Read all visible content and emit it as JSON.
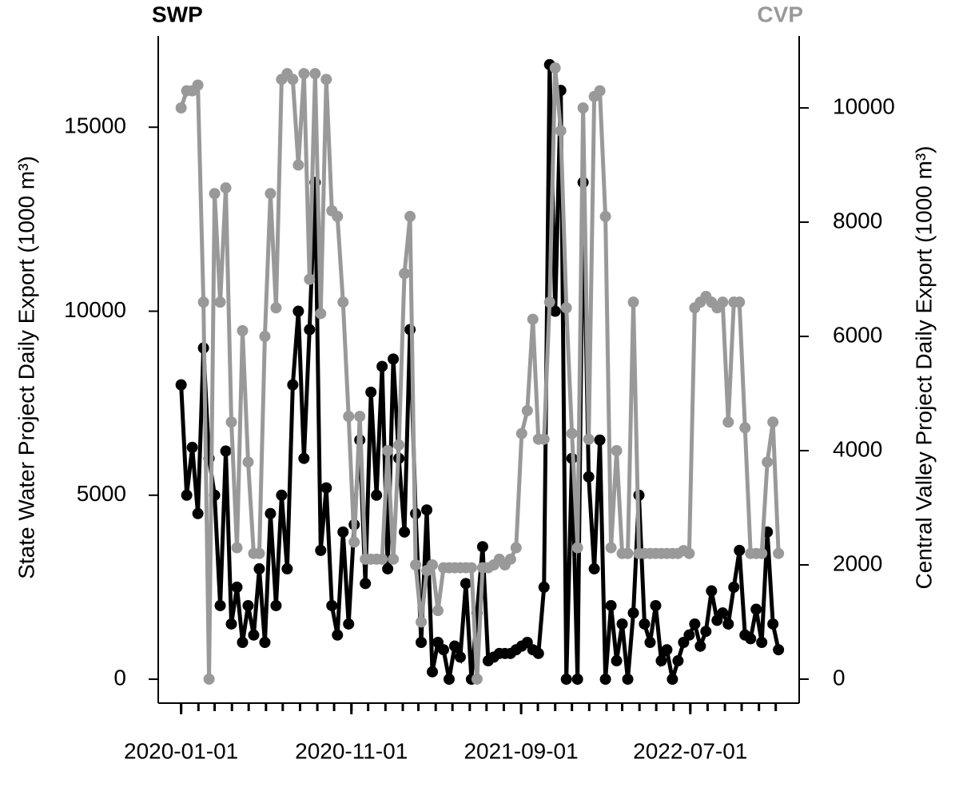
{
  "chart_data": {
    "type": "line",
    "left_label": "SWP",
    "right_label": "CVP",
    "ylabel": "State Water Project Daily Export (1000 m³)",
    "y2label": "Central Valley Project Daily Export (1000 m³)",
    "x": [
      "2020-01-01",
      "2020-01-11",
      "2020-01-21",
      "2020-01-31",
      "2020-02-10",
      "2020-02-20",
      "2020-03-01",
      "2020-03-11",
      "2020-03-21",
      "2020-03-31",
      "2020-04-10",
      "2020-04-20",
      "2020-04-30",
      "2020-05-10",
      "2020-05-20",
      "2020-05-30",
      "2020-06-09",
      "2020-06-19",
      "2020-06-29",
      "2020-07-09",
      "2020-07-19",
      "2020-07-29",
      "2020-08-08",
      "2020-08-18",
      "2020-08-28",
      "2020-09-07",
      "2020-09-17",
      "2020-09-27",
      "2020-10-07",
      "2020-10-17",
      "2020-10-27",
      "2020-11-06",
      "2020-11-16",
      "2020-11-26",
      "2020-12-06",
      "2020-12-16",
      "2020-12-26",
      "2021-01-05",
      "2021-01-15",
      "2021-01-25",
      "2021-02-04",
      "2021-02-14",
      "2021-02-24",
      "2021-03-06",
      "2021-03-16",
      "2021-03-26",
      "2021-04-05",
      "2021-04-15",
      "2021-04-25",
      "2021-05-05",
      "2021-05-15",
      "2021-05-25",
      "2021-06-04",
      "2021-06-14",
      "2021-06-24",
      "2021-07-04",
      "2021-07-14",
      "2021-07-24",
      "2021-08-03",
      "2021-08-13",
      "2021-08-23",
      "2021-09-02",
      "2021-09-12",
      "2021-09-22",
      "2021-10-02",
      "2021-10-12",
      "2021-10-22",
      "2021-11-01",
      "2021-11-11",
      "2021-11-21",
      "2021-12-01",
      "2021-12-11",
      "2021-12-21",
      "2021-12-31",
      "2022-01-10",
      "2022-01-20",
      "2022-01-30",
      "2022-02-09",
      "2022-02-19",
      "2022-03-01",
      "2022-03-11",
      "2022-03-21",
      "2022-03-31",
      "2022-04-10",
      "2022-04-20",
      "2022-04-30",
      "2022-05-10",
      "2022-05-20",
      "2022-05-30",
      "2022-06-09",
      "2022-06-19",
      "2022-06-29",
      "2022-07-09",
      "2022-07-19",
      "2022-07-29",
      "2022-08-08",
      "2022-08-18",
      "2022-08-28",
      "2022-09-07",
      "2022-09-17",
      "2022-09-27",
      "2022-10-07",
      "2022-10-17",
      "2022-10-27",
      "2022-11-06",
      "2022-11-16",
      "2022-11-26",
      "2022-12-06"
    ],
    "series": [
      {
        "name": "SWP",
        "color": "#000000",
        "axis": "y",
        "values": [
          8000,
          5000,
          6300,
          4500,
          9000,
          6000,
          5000,
          2000,
          6200,
          1500,
          2500,
          1000,
          2000,
          1200,
          3000,
          1000,
          4500,
          2000,
          5000,
          3000,
          8000,
          10000,
          6000,
          9500,
          13500,
          3500,
          5200,
          2000,
          1200,
          4000,
          1500,
          4200,
          6500,
          2600,
          7800,
          5000,
          8500,
          3000,
          8700,
          6000,
          4000,
          9500,
          4500,
          1000,
          4600,
          200,
          1000,
          800,
          0,
          900,
          600,
          2600,
          0,
          1800,
          3600,
          500,
          600,
          700,
          700,
          700,
          800,
          900,
          1000,
          800,
          700,
          2500,
          16700,
          10000,
          16000,
          0,
          6000,
          0,
          13500,
          5500,
          3000,
          6500,
          0,
          2000,
          500,
          1500,
          0,
          1800,
          5000,
          1500,
          1000,
          2000,
          500,
          800,
          0,
          500,
          1000,
          1200,
          1500,
          900,
          1300,
          2400,
          1600,
          1800,
          1500,
          2500,
          3500,
          1200,
          1100,
          1900,
          1000,
          4000,
          1500,
          800
        ]
      },
      {
        "name": "CVP",
        "color": "#999999",
        "axis": "y2",
        "values": [
          10000,
          10300,
          10300,
          10400,
          6600,
          0,
          8500,
          6600,
          8600,
          4500,
          2300,
          6100,
          3800,
          2200,
          2200,
          6000,
          8500,
          6500,
          10500,
          10600,
          10500,
          9000,
          10600,
          7000,
          10600,
          6400,
          10500,
          8200,
          8100,
          6600,
          4600,
          2400,
          4600,
          2100,
          2100,
          2100,
          2100,
          4000,
          2100,
          4100,
          7100,
          8100,
          2000,
          1000,
          1900,
          2000,
          1200,
          1950,
          1950,
          1950,
          1950,
          1950,
          1950,
          0,
          1950,
          1950,
          2000,
          2100,
          2000,
          2100,
          2300,
          4300,
          4700,
          6300,
          4200,
          4200,
          6600,
          10700,
          9600,
          6500,
          4300,
          2300,
          10000,
          4200,
          10200,
          10300,
          8100,
          2300,
          4000,
          2200,
          2200,
          6600,
          2200,
          2200,
          2200,
          2200,
          2200,
          2200,
          2200,
          2200,
          2250,
          2200,
          6500,
          6600,
          6700,
          6600,
          6500,
          6600,
          4500,
          6600,
          6600,
          4400,
          2200,
          2200,
          2200,
          3800,
          4500,
          2200
        ]
      }
    ],
    "xlim": [
      "2019-11-21",
      "2023-01-12"
    ],
    "xticks": [
      "2020-01-01",
      "2020-11-01",
      "2021-09-01",
      "2022-07-01"
    ],
    "xminor_ticks": [
      "2020-01-01",
      "2020-02-01",
      "2020-03-01",
      "2020-04-01",
      "2020-05-01",
      "2020-06-01",
      "2020-07-01",
      "2020-08-01",
      "2020-09-01",
      "2020-10-01",
      "2020-11-01",
      "2020-12-01",
      "2021-01-01",
      "2021-02-01",
      "2021-03-01",
      "2021-04-01",
      "2021-05-01",
      "2021-06-01",
      "2021-07-01",
      "2021-08-01",
      "2021-09-01",
      "2021-10-01",
      "2021-11-01",
      "2021-12-01",
      "2022-01-01",
      "2022-02-01",
      "2022-03-01",
      "2022-04-01",
      "2022-05-01",
      "2022-06-01",
      "2022-07-01",
      "2022-08-01",
      "2022-09-01",
      "2022-10-01",
      "2022-11-01",
      "2022-12-01"
    ],
    "ylim": [
      -650,
      17480
    ],
    "yticks": [
      0,
      5000,
      10000,
      15000
    ],
    "y2lim": [
      -420,
      11260
    ],
    "y2ticks": [
      0,
      2000,
      4000,
      6000,
      8000,
      10000
    ],
    "grid": false
  }
}
